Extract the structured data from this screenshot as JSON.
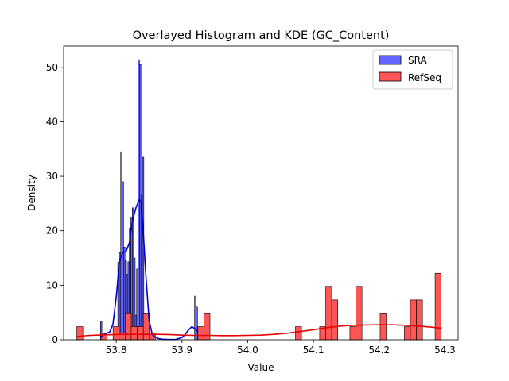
{
  "chart_data": {
    "type": "histogram",
    "title": "Overlayed Histogram and KDE (GC_Content)",
    "xlabel": "Value",
    "ylabel": "Density",
    "xlim": [
      53.72,
      54.32
    ],
    "ylim": [
      0,
      53.9
    ],
    "xticks": [
      "53.8",
      "53.9",
      "54.0",
      "54.1",
      "54.2",
      "54.3"
    ],
    "xtick_values": [
      53.8,
      53.9,
      54.0,
      54.1,
      54.2,
      54.3
    ],
    "yticks": [
      "0",
      "10",
      "20",
      "30",
      "40",
      "50"
    ],
    "ytick_values": [
      0,
      10,
      20,
      30,
      40,
      50
    ],
    "grid": false,
    "legend_position": "top-right",
    "series": [
      {
        "name": "SRA",
        "color": "#6666ff",
        "edge": "#000000",
        "kde_color": "#0000cc",
        "bin_width": 0.0022,
        "bins": [
          {
            "x0": 53.776,
            "v": 3.4
          },
          {
            "x0": 53.7782,
            "v": 1.0
          },
          {
            "x0": 53.8024,
            "v": 14.2
          },
          {
            "x0": 53.8046,
            "v": 16.0
          },
          {
            "x0": 53.8068,
            "v": 34.5
          },
          {
            "x0": 53.809,
            "v": 29.0
          },
          {
            "x0": 53.8112,
            "v": 17.0
          },
          {
            "x0": 53.8134,
            "v": 14.5
          },
          {
            "x0": 53.8156,
            "v": 12.0
          },
          {
            "x0": 53.8178,
            "v": 14.3
          },
          {
            "x0": 53.82,
            "v": 20.5
          },
          {
            "x0": 53.8222,
            "v": 22.5
          },
          {
            "x0": 53.8244,
            "v": 24.2
          },
          {
            "x0": 53.8266,
            "v": 15.0
          },
          {
            "x0": 53.8288,
            "v": 4.5
          },
          {
            "x0": 53.831,
            "v": 13.0
          },
          {
            "x0": 53.8332,
            "v": 51.4
          },
          {
            "x0": 53.8354,
            "v": 50.5
          },
          {
            "x0": 53.8376,
            "v": 26.5
          },
          {
            "x0": 53.8398,
            "v": 33.5
          },
          {
            "x0": 53.842,
            "v": 1.5
          },
          {
            "x0": 53.8442,
            "v": 1.0
          },
          {
            "x0": 53.9192,
            "v": 8.0
          },
          {
            "x0": 53.9214,
            "v": 6.0
          }
        ],
        "kde": {
          "x": [
            53.776,
            53.78,
            53.785,
            53.79,
            53.795,
            53.8,
            53.805,
            53.81,
            53.815,
            53.82,
            53.825,
            53.83,
            53.835,
            53.838,
            53.84,
            53.845,
            53.85,
            53.855,
            53.86,
            53.865,
            53.87,
            53.88,
            53.89,
            53.9,
            53.905,
            53.91,
            53.915,
            53.92,
            53.924
          ],
          "y": [
            0.4,
            0.9,
            1.2,
            1.4,
            2.8,
            7.8,
            14.5,
            16.0,
            16.2,
            17.8,
            22.0,
            24.2,
            25.7,
            25.3,
            22.0,
            12.0,
            3.5,
            0.9,
            0.4,
            0.2,
            0.1,
            0.05,
            0.05,
            0.4,
            1.0,
            1.8,
            2.4,
            2.0,
            1.5
          ]
        }
      },
      {
        "name": "RefSeq",
        "color": "#ff5555",
        "edge": "#000000",
        "kde_color": "#e60000",
        "bin_width": 0.0092,
        "bins": [
          {
            "x0": 53.74,
            "v": 2.4
          },
          {
            "x0": 53.7768,
            "v": 1.2
          },
          {
            "x0": 53.7952,
            "v": 2.4
          },
          {
            "x0": 53.8044,
            "v": 1.2
          },
          {
            "x0": 53.8136,
            "v": 4.9
          },
          {
            "x0": 53.8228,
            "v": 2.4
          },
          {
            "x0": 53.832,
            "v": 2.4
          },
          {
            "x0": 53.8412,
            "v": 4.9
          },
          {
            "x0": 53.8504,
            "v": 1.2
          },
          {
            "x0": 53.9242,
            "v": 2.4
          },
          {
            "x0": 53.9334,
            "v": 4.9
          },
          {
            "x0": 54.0726,
            "v": 2.4
          },
          {
            "x0": 54.1094,
            "v": 2.4
          },
          {
            "x0": 54.1186,
            "v": 9.8
          },
          {
            "x0": 54.1278,
            "v": 7.3
          },
          {
            "x0": 54.1554,
            "v": 2.4
          },
          {
            "x0": 54.1646,
            "v": 9.8
          },
          {
            "x0": 54.2014,
            "v": 4.9
          },
          {
            "x0": 54.2382,
            "v": 2.4
          },
          {
            "x0": 54.2474,
            "v": 7.3
          },
          {
            "x0": 54.2566,
            "v": 7.3
          },
          {
            "x0": 54.285,
            "v": 12.2
          }
        ],
        "kde": {
          "x": [
            53.74,
            53.76,
            53.78,
            53.8,
            53.82,
            53.84,
            53.86,
            53.88,
            53.9,
            53.92,
            53.94,
            53.96,
            53.98,
            54.0,
            54.02,
            54.04,
            54.06,
            54.08,
            54.1,
            54.12,
            54.14,
            54.16,
            54.18,
            54.2,
            54.22,
            54.24,
            54.26,
            54.28,
            54.295
          ],
          "y": [
            0.6,
            0.8,
            0.9,
            0.95,
            1.0,
            1.0,
            1.0,
            0.95,
            0.85,
            0.8,
            0.8,
            0.75,
            0.75,
            0.8,
            0.85,
            1.0,
            1.2,
            1.5,
            1.85,
            2.2,
            2.5,
            2.65,
            2.7,
            2.75,
            2.75,
            2.65,
            2.5,
            2.3,
            2.1
          ]
        }
      }
    ]
  }
}
